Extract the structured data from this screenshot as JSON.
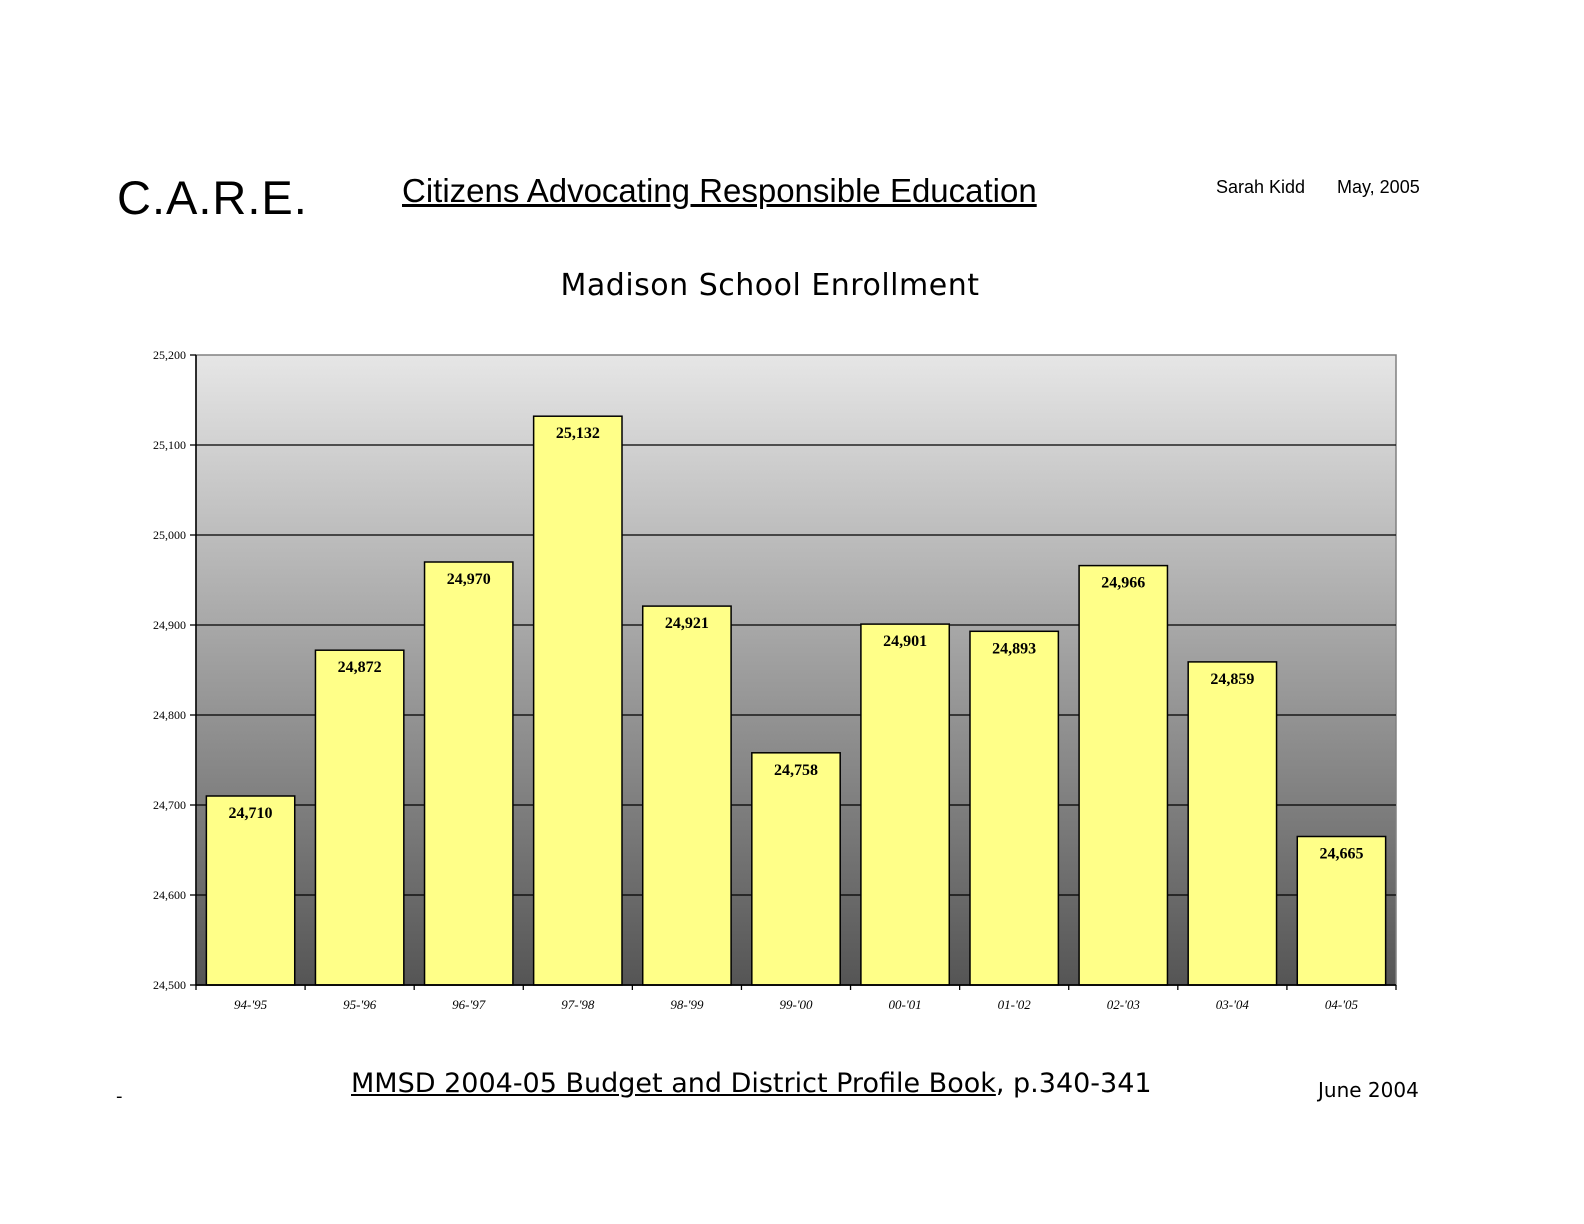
{
  "header": {
    "org": "C.A.R.E.",
    "headline": "Citizens Advocating Responsible Education",
    "author": "Sarah Kidd",
    "date": "May, 2005"
  },
  "footer": {
    "source_ref": "MMSD 2004-05 Budget and District Profile Book",
    "source_pages": ", p.340-341",
    "source_date": "June 2004",
    "stray_mark": "-"
  },
  "colors": {
    "bar_fill": "#ffff88",
    "plot_top": "#e6e6e6",
    "plot_bottom": "#555555"
  },
  "chart_data": {
    "type": "bar",
    "title": "Madison School Enrollment",
    "categories": [
      "94-'95",
      "95-'96",
      "96-'97",
      "97-'98",
      "98-'99",
      "99-'00",
      "00-'01",
      "01-'02",
      "02-'03",
      "03-'04",
      "04-'05"
    ],
    "values": [
      24710,
      24872,
      24970,
      25132,
      24921,
      24758,
      24901,
      24893,
      24966,
      24859,
      24665
    ],
    "value_labels": [
      "24,710",
      "24,872",
      "24,970",
      "25,132",
      "24,921",
      "24,758",
      "24,901",
      "24,893",
      "24,966",
      "24,859",
      "24,665"
    ],
    "ylim": [
      24500,
      25200
    ],
    "yticks": [
      24500,
      24600,
      24700,
      24800,
      24900,
      25000,
      25100,
      25200
    ],
    "ytick_labels": [
      "24,500",
      "24,600",
      "24,700",
      "24,800",
      "24,900",
      "25,000",
      "25,100",
      "25,200"
    ],
    "xlabel": "",
    "ylabel": "",
    "grid": true,
    "legend": false
  }
}
